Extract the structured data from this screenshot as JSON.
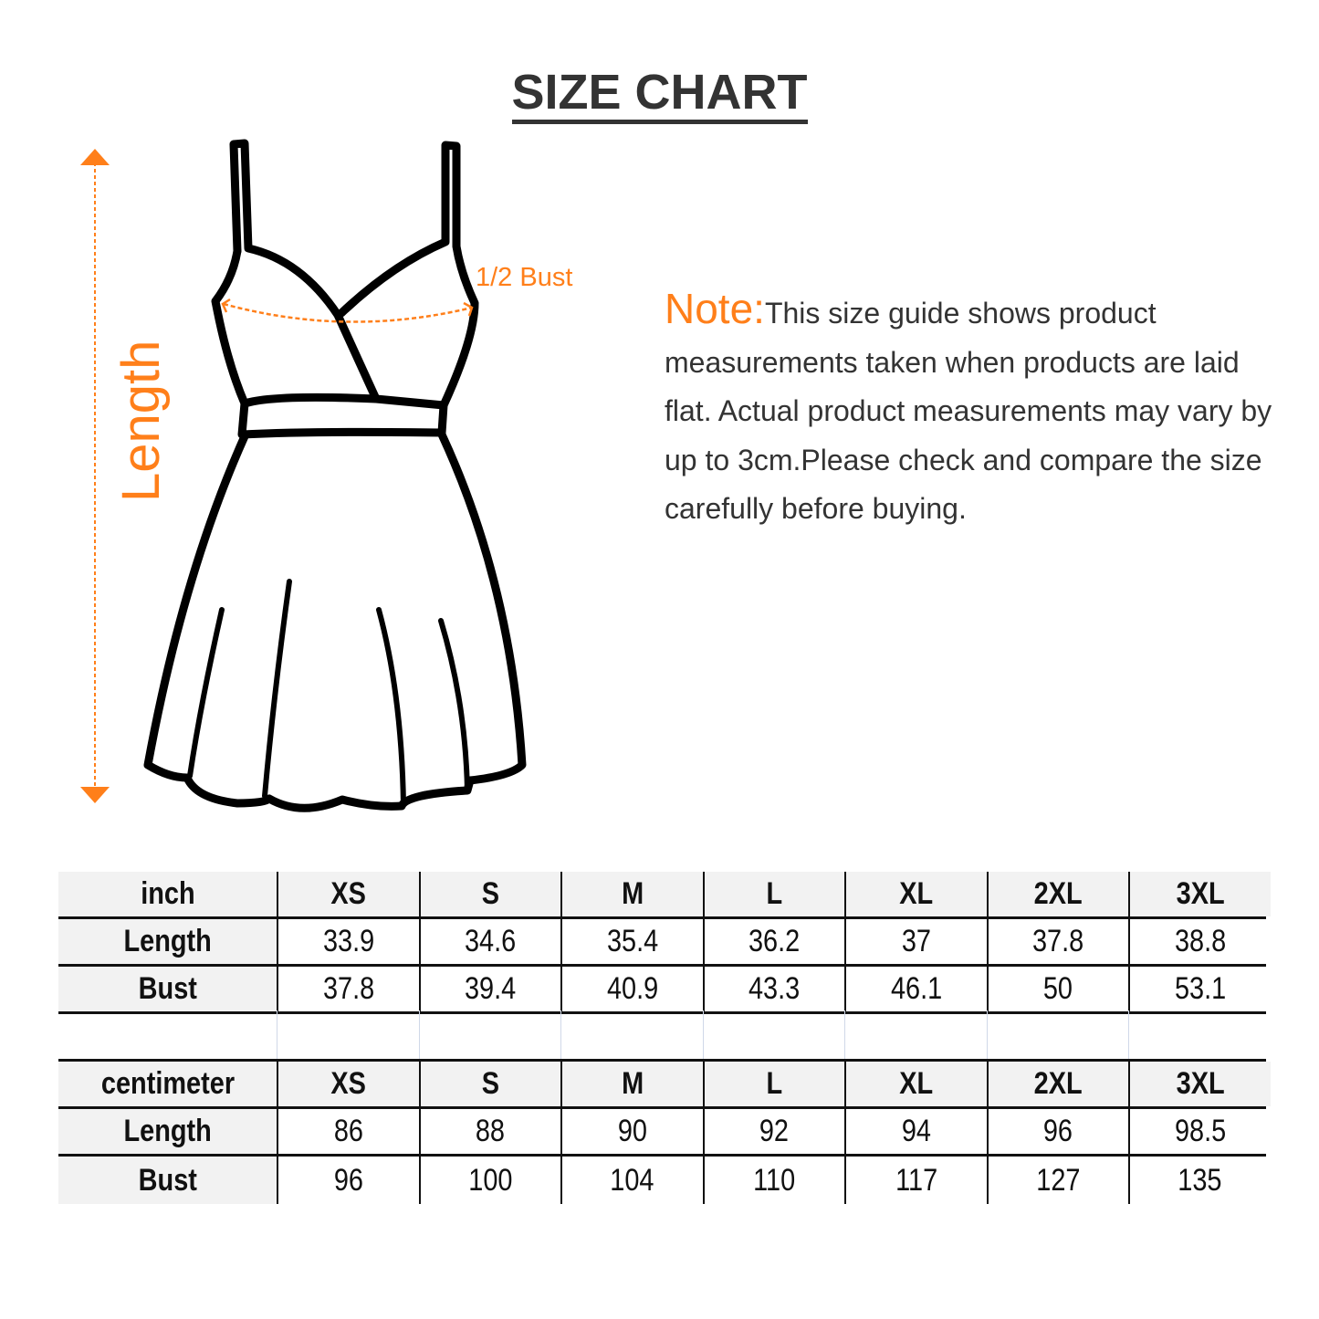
{
  "title": "SIZE CHART",
  "diagram": {
    "length_label": "Length",
    "bust_label": "1/2 Bust",
    "accent_color": "#ff7f1a"
  },
  "note": {
    "label": "Note:",
    "text": "This size guide shows product measurements taken when products are laid flat. Actual product measurements may vary by up to 3cm.Please check and compare the size carefully before buying."
  },
  "tables": [
    {
      "unit": "inch",
      "sizes": [
        "XS",
        "S",
        "M",
        "L",
        "XL",
        "2XL",
        "3XL"
      ],
      "rows": [
        {
          "label": "Length",
          "values": [
            "33.9",
            "34.6",
            "35.4",
            "36.2",
            "37",
            "37.8",
            "38.8"
          ]
        },
        {
          "label": "Bust",
          "values": [
            "37.8",
            "39.4",
            "40.9",
            "43.3",
            "46.1",
            "50",
            "53.1"
          ]
        }
      ]
    },
    {
      "unit": "centimeter",
      "sizes": [
        "XS",
        "S",
        "M",
        "L",
        "XL",
        "2XL",
        "3XL"
      ],
      "rows": [
        {
          "label": "Length",
          "values": [
            "86",
            "88",
            "90",
            "92",
            "94",
            "96",
            "98.5"
          ]
        },
        {
          "label": "Bust",
          "values": [
            "96",
            "100",
            "104",
            "110",
            "117",
            "127",
            "135"
          ]
        }
      ]
    }
  ]
}
